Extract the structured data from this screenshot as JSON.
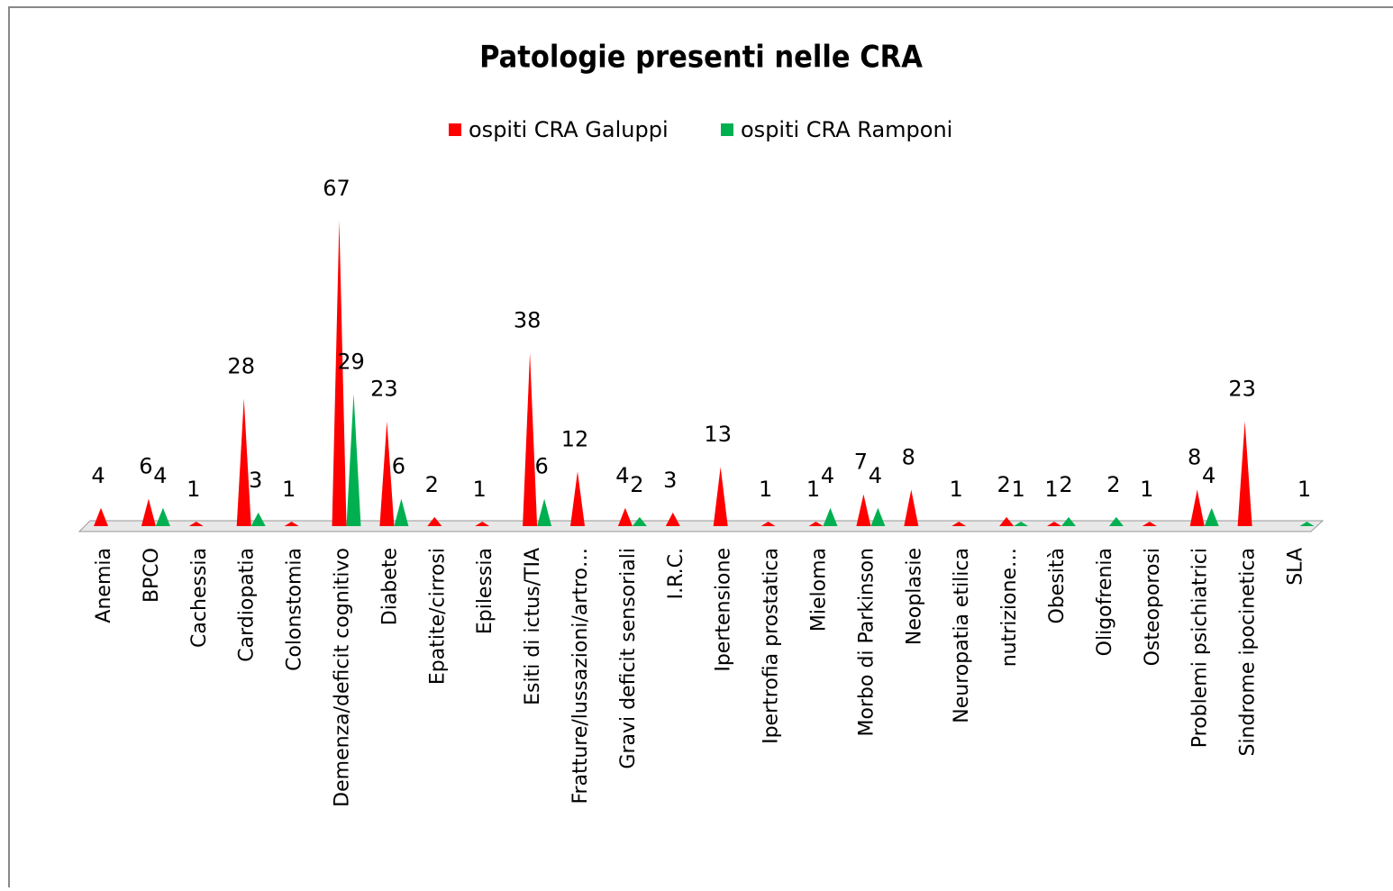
{
  "chart_data": {
    "type": "cone",
    "title": "Patologie presenti nelle CRA",
    "categories": [
      "Anemia",
      "BPCO",
      "Cachessia",
      "Cardiopatia",
      "Colonstomia",
      "Demenza/deficit cognitivo",
      "Diabete",
      "Epatite/cirrosi",
      "Epilessia",
      "Esiti di ictus/TIA",
      "Fratture/lussazioni/artro…",
      "Gravi deficit sensoriali",
      "I.R.C.",
      "Ipertensione",
      "Ipertrofia prostatica",
      "Mieloma",
      "Morbo di Parkinson",
      "Neoplasie",
      "Neuropatia etilica",
      "nutrizione…",
      "Obesità",
      "Oligofrenia",
      "Osteoporosi",
      "Problemi psichiatrici",
      "Sindrome ipocinetica",
      "SLA"
    ],
    "series": [
      {
        "name": "ospiti CRA Galuppi",
        "color": "#ff0000",
        "values": [
          4,
          6,
          1,
          28,
          1,
          67,
          23,
          2,
          1,
          38,
          12,
          4,
          3,
          13,
          1,
          1,
          7,
          8,
          1,
          2,
          1,
          null,
          1,
          8,
          23,
          null
        ]
      },
      {
        "name": "ospiti CRA Ramponi",
        "color": "#00b050",
        "values": [
          null,
          4,
          null,
          3,
          null,
          29,
          6,
          null,
          null,
          6,
          null,
          2,
          null,
          null,
          null,
          4,
          4,
          null,
          null,
          1,
          2,
          2,
          null,
          4,
          null,
          1
        ]
      }
    ],
    "legend": "top"
  }
}
